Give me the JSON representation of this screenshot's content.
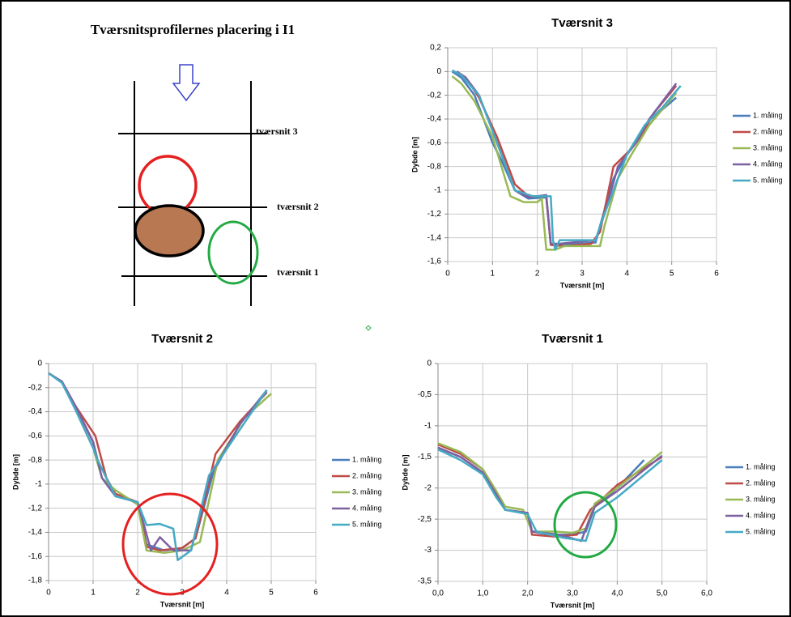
{
  "diagram": {
    "title": "Tværsnitsprofilernes placering i I1",
    "labels": [
      "tværsnit 3",
      "tværsnit 2",
      "tværsnit 1"
    ]
  },
  "chart_data": [
    {
      "type": "line",
      "title": "Tværsnit 3",
      "xlabel": "Tværsnit [m]",
      "ylabel": "Dybde [m]",
      "xlim": [
        0,
        6
      ],
      "ylim": [
        -1.6,
        0.2
      ],
      "xticks": [
        0,
        1,
        2,
        3,
        4,
        5,
        6
      ],
      "yticks": [
        {
          "value": 0.2,
          "label": "0,2"
        },
        0,
        {
          "value": -0.2,
          "label": "-0,2"
        },
        {
          "value": -0.4,
          "label": "-0,4"
        },
        {
          "value": -0.6,
          "label": "-0,6"
        },
        {
          "value": -0.8,
          "label": "-0,8"
        },
        -1,
        {
          "value": -1.2,
          "label": "-1,2"
        },
        {
          "value": -1.4,
          "label": "-1,4"
        },
        {
          "value": -1.6,
          "label": "-1,6"
        }
      ],
      "grid": true,
      "legend": "right",
      "series": [
        {
          "name": "1. måling",
          "color": "#4a7ebb",
          "x": [
            0.1,
            0.3,
            0.6,
            1.0,
            1.2,
            1.5,
            1.8,
            2.2,
            2.3,
            2.6,
            3.3,
            3.4,
            3.7,
            4.0,
            4.4,
            4.7,
            5.1
          ],
          "values": [
            0,
            -0.05,
            -0.2,
            -0.6,
            -0.75,
            -1.0,
            -1.07,
            -1.06,
            -1.45,
            -1.46,
            -1.44,
            -1.3,
            -0.9,
            -0.7,
            -0.5,
            -0.35,
            -0.22
          ]
        },
        {
          "name": "2. måling",
          "color": "#be4b48",
          "x": [
            0.2,
            0.4,
            0.7,
            1.1,
            1.5,
            1.8,
            2.2,
            2.3,
            2.6,
            3.2,
            3.4,
            3.7,
            4.1,
            4.3,
            4.6,
            5.1
          ],
          "values": [
            0,
            -0.05,
            -0.22,
            -0.55,
            -0.95,
            -1.05,
            -1.05,
            -1.46,
            -1.47,
            -1.45,
            -1.35,
            -0.8,
            -0.65,
            -0.55,
            -0.35,
            -0.12
          ]
        },
        {
          "name": "3. måling",
          "color": "#98b954",
          "x": [
            0.1,
            0.3,
            0.6,
            1.0,
            1.4,
            1.7,
            2.0,
            2.1,
            2.2,
            2.4,
            2.6,
            3.4,
            3.5,
            3.8,
            4.1,
            4.5,
            5.1
          ],
          "values": [
            -0.04,
            -0.1,
            -0.25,
            -0.55,
            -1.05,
            -1.1,
            -1.1,
            -1.07,
            -1.5,
            -1.5,
            -1.47,
            -1.47,
            -1.3,
            -0.9,
            -0.7,
            -0.45,
            -0.18
          ]
        },
        {
          "name": "4. måling",
          "color": "#7d60a0",
          "x": [
            0.2,
            0.4,
            0.7,
            1.1,
            1.5,
            1.8,
            2.2,
            2.3,
            2.5,
            3.3,
            3.5,
            3.8,
            4.2,
            4.5,
            5.1
          ],
          "values": [
            0,
            -0.05,
            -0.2,
            -0.6,
            -1.0,
            -1.06,
            -1.04,
            -1.45,
            -1.45,
            -1.42,
            -1.2,
            -0.8,
            -0.6,
            -0.4,
            -0.1
          ]
        },
        {
          "name": "5. måling",
          "color": "#46aac5",
          "x": [
            0.1,
            0.3,
            0.7,
            1.1,
            1.5,
            1.9,
            2.3,
            2.35,
            2.4,
            2.5,
            3.3,
            3.4,
            3.7,
            4.0,
            4.4,
            4.8,
            5.2
          ],
          "values": [
            0.01,
            -0.03,
            -0.2,
            -0.6,
            -1.0,
            -1.05,
            -1.05,
            -1.42,
            -1.5,
            -1.42,
            -1.42,
            -1.3,
            -1.0,
            -0.7,
            -0.45,
            -0.3,
            -0.12
          ]
        }
      ]
    },
    {
      "type": "line",
      "title": "Tværsnit 2",
      "xlabel": "Tværsnit [m]",
      "ylabel": "Dybde [m]",
      "xlim": [
        0,
        6
      ],
      "ylim": [
        -1.8,
        0
      ],
      "xticks": [
        0,
        1,
        2,
        3,
        4,
        5,
        6
      ],
      "yticks": [
        0,
        {
          "value": -0.2,
          "label": "-0,2"
        },
        {
          "value": -0.4,
          "label": "-0,4"
        },
        {
          "value": -0.6,
          "label": "-0,6"
        },
        {
          "value": -0.8,
          "label": "-0,8"
        },
        -1,
        {
          "value": -1.2,
          "label": "-1,2"
        },
        {
          "value": -1.4,
          "label": "-1,4"
        },
        {
          "value": -1.6,
          "label": "-1,6"
        },
        {
          "value": -1.8,
          "label": "-1,8"
        }
      ],
      "grid": true,
      "legend": "right",
      "series": [
        {
          "name": "1. måling",
          "color": "#4a7ebb",
          "x": [
            0,
            0.3,
            0.6,
            1.0,
            1.1,
            1.5,
            2.0,
            2.2,
            2.6,
            3.0,
            3.3,
            3.7,
            4.3,
            4.9
          ],
          "values": [
            -0.08,
            -0.15,
            -0.35,
            -0.65,
            -0.8,
            -1.1,
            -1.15,
            -1.5,
            -1.55,
            -1.53,
            -1.45,
            -0.9,
            -0.5,
            -0.22
          ]
        },
        {
          "name": "2. måling",
          "color": "#be4b48",
          "x": [
            0,
            0.3,
            0.6,
            1.05,
            1.3,
            1.5,
            2.0,
            2.2,
            2.5,
            3.0,
            3.3,
            3.75,
            4.3,
            4.9
          ],
          "values": [
            -0.08,
            -0.15,
            -0.35,
            -0.6,
            -0.95,
            -1.08,
            -1.15,
            -1.52,
            -1.55,
            -1.53,
            -1.45,
            -0.75,
            -0.48,
            -0.24
          ]
        },
        {
          "name": "3. måling",
          "color": "#98b954",
          "x": [
            0,
            0.3,
            0.6,
            1.0,
            1.2,
            1.5,
            2.0,
            2.2,
            2.6,
            3.0,
            3.4,
            3.8,
            4.4,
            5.0
          ],
          "values": [
            -0.08,
            -0.15,
            -0.38,
            -0.7,
            -0.95,
            -1.05,
            -1.17,
            -1.55,
            -1.57,
            -1.55,
            -1.48,
            -0.8,
            -0.45,
            -0.25
          ]
        },
        {
          "name": "4. måling",
          "color": "#7d60a0",
          "x": [
            0,
            0.3,
            0.6,
            1.0,
            1.2,
            1.5,
            2.0,
            2.3,
            2.5,
            2.8,
            3.2,
            3.6,
            4.3,
            4.9
          ],
          "values": [
            -0.08,
            -0.15,
            -0.35,
            -0.65,
            -0.95,
            -1.1,
            -1.15,
            -1.55,
            -1.44,
            -1.55,
            -1.55,
            -0.95,
            -0.5,
            -0.23
          ]
        },
        {
          "name": "5. måling",
          "color": "#46aac5",
          "x": [
            0,
            0.3,
            0.6,
            1.0,
            1.1,
            1.5,
            2.0,
            2.2,
            2.5,
            2.8,
            2.9,
            3.2,
            3.6,
            4.2,
            4.9
          ],
          "values": [
            -0.08,
            -0.16,
            -0.38,
            -0.7,
            -0.8,
            -1.1,
            -1.15,
            -1.34,
            -1.33,
            -1.37,
            -1.63,
            -1.55,
            -0.93,
            -0.6,
            -0.22
          ]
        }
      ]
    },
    {
      "type": "line",
      "title": "Tværsnit 1",
      "xlabel": "Tværsnit [m]",
      "ylabel": "Dybde [m]",
      "xlim": [
        0,
        6
      ],
      "ylim": [
        -3.5,
        0
      ],
      "xticks": [
        {
          "value": 0,
          "label": "0,0"
        },
        {
          "value": 1,
          "label": "1,0"
        },
        {
          "value": 2,
          "label": "2,0"
        },
        {
          "value": 3,
          "label": "3,0"
        },
        {
          "value": 4,
          "label": "4,0"
        },
        {
          "value": 5,
          "label": "5,0"
        },
        {
          "value": 6,
          "label": "6,0"
        }
      ],
      "yticks": [
        0,
        {
          "value": -0.5,
          "label": "-0,5"
        },
        -1,
        {
          "value": -1.5,
          "label": "-1,5"
        },
        -2,
        {
          "value": -2.5,
          "label": "-2,5"
        },
        -3,
        {
          "value": -3.5,
          "label": "-3,5"
        }
      ],
      "grid": true,
      "legend": "right",
      "series": [
        {
          "name": "1. måling",
          "color": "#4a7ebb",
          "x": [
            0,
            0.5,
            1.0,
            1.3,
            1.5,
            2.0,
            2.1,
            2.5,
            3.0,
            3.3,
            3.5,
            4.0,
            4.6
          ],
          "values": [
            -1.35,
            -1.5,
            -1.75,
            -2.1,
            -2.35,
            -2.4,
            -2.7,
            -2.75,
            -2.75,
            -2.7,
            -2.3,
            -2.0,
            -1.55
          ]
        },
        {
          "name": "2. måling",
          "color": "#be4b48",
          "x": [
            0,
            0.5,
            1.0,
            1.3,
            1.5,
            2.0,
            2.1,
            2.6,
            3.1,
            3.4,
            4.0,
            5.0
          ],
          "values": [
            -1.3,
            -1.45,
            -1.7,
            -2.05,
            -2.35,
            -2.4,
            -2.75,
            -2.78,
            -2.75,
            -2.35,
            -1.95,
            -1.5
          ]
        },
        {
          "name": "3. måling",
          "color": "#98b954",
          "x": [
            0,
            0.5,
            1.0,
            1.3,
            1.5,
            1.9,
            2.1,
            2.6,
            3.0,
            3.3,
            3.5,
            4.0,
            5.0
          ],
          "values": [
            -1.28,
            -1.42,
            -1.7,
            -2.05,
            -2.3,
            -2.35,
            -2.7,
            -2.7,
            -2.72,
            -2.65,
            -2.25,
            -2.0,
            -1.42
          ]
        },
        {
          "name": "4. måling",
          "color": "#7d60a0",
          "x": [
            0,
            0.5,
            1.0,
            1.3,
            1.5,
            2.0,
            2.1,
            2.7,
            3.2,
            3.3,
            3.5,
            4.0,
            5.0
          ],
          "values": [
            -1.35,
            -1.5,
            -1.75,
            -2.1,
            -2.35,
            -2.4,
            -2.7,
            -2.75,
            -2.85,
            -2.65,
            -2.3,
            -2.05,
            -1.48
          ]
        },
        {
          "name": "5. måling",
          "color": "#46aac5",
          "x": [
            0,
            0.5,
            1.0,
            1.3,
            1.5,
            2.0,
            2.2,
            2.8,
            3.3,
            3.5,
            4.0,
            5.0
          ],
          "values": [
            -1.38,
            -1.55,
            -1.78,
            -2.15,
            -2.35,
            -2.42,
            -2.7,
            -2.8,
            -2.85,
            -2.4,
            -2.15,
            -1.55
          ]
        }
      ]
    }
  ]
}
